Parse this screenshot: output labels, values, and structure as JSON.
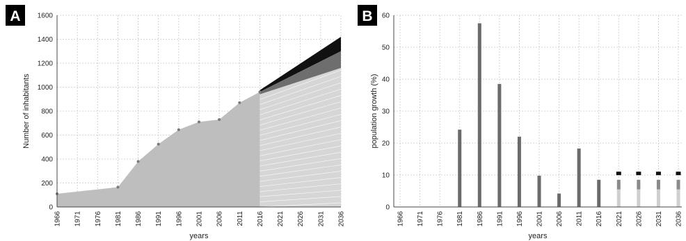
{
  "chart_data": [
    {
      "panel": "A",
      "type": "area",
      "ylabel": "Number of inhabitants",
      "xlabel": "years",
      "ylim": [
        0,
        1600
      ],
      "yticks": [
        0,
        200,
        400,
        600,
        800,
        1000,
        1200,
        1400,
        1600
      ],
      "xticks": [
        "1966",
        "1971",
        "1976",
        "1981",
        "1986",
        "1991",
        "1996",
        "2001",
        "2006",
        "2011",
        "2016",
        "2021",
        "2026",
        "2031",
        "2036"
      ],
      "grid": true,
      "historical": {
        "x": [
          1966,
          1981,
          1986,
          1991,
          1996,
          2001,
          2006,
          2011,
          2016
        ],
        "y": [
          110,
          165,
          380,
          525,
          645,
          710,
          730,
          870,
          960
        ]
      },
      "projection": {
        "x": [
          2016,
          2036
        ],
        "low": [
          940,
          1160
        ],
        "mid": [
          960,
          1300
        ],
        "high": [
          975,
          1420
        ]
      },
      "colors": {
        "area": "#bebebe",
        "low": "#d6d6d6",
        "mid": "#6e6e6e",
        "high": "#111111",
        "point": "#7a7a7a"
      }
    },
    {
      "panel": "B",
      "type": "bar",
      "ylabel": "population growth (%)",
      "xlabel": "years",
      "ylim": [
        0,
        60
      ],
      "yticks": [
        0,
        10,
        20,
        30,
        40,
        50,
        60
      ],
      "categories": [
        "1966",
        "1971",
        "1976",
        "1981",
        "1986",
        "1991",
        "1996",
        "2001",
        "2006",
        "2011",
        "2016",
        "2021",
        "2026",
        "2031",
        "2036"
      ],
      "values": [
        0,
        0,
        0,
        24.2,
        57.5,
        38.5,
        22,
        9.8,
        4.2,
        18.3,
        8.5,
        null,
        null,
        null,
        null
      ],
      "projection": {
        "categories": [
          "2021",
          "2026",
          "2031",
          "2036"
        ],
        "low": 5.5,
        "mid": 8.5,
        "high": 10.5
      },
      "grid": true,
      "colors": {
        "bar": "#6b6b6b",
        "low": "#cfcfcf",
        "mid": "#8a8a8a",
        "high": "#111111"
      }
    }
  ]
}
